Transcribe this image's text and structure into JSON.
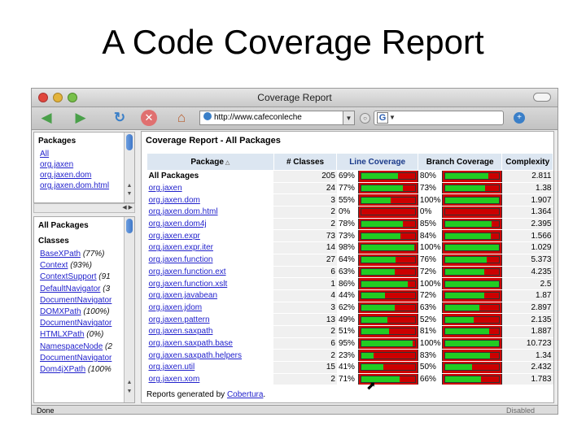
{
  "slide": {
    "title": "A Code Coverage Report"
  },
  "window": {
    "title": "Coverage Report"
  },
  "toolbar": {
    "url": "http://www.cafeconleche",
    "search_engine": "G"
  },
  "packages_frame": {
    "heading": "Packages",
    "items": [
      "All",
      "org.jaxen",
      "org.jaxen.dom",
      "org.jaxen.dom.html"
    ]
  },
  "classes_frame": {
    "heading": "All Packages",
    "subheading": "Classes",
    "items": [
      {
        "name": "BaseXPath",
        "pct": "(77%)"
      },
      {
        "name": "Context",
        "pct": "(93%)"
      },
      {
        "name": "ContextSupport",
        "pct": "(91"
      },
      {
        "name": "DefaultNavigator",
        "pct": "(3"
      },
      {
        "name": "DocumentNavigator",
        "pct": ""
      },
      {
        "name": "DOMXPath",
        "pct": "(100%)"
      },
      {
        "name": "DocumentNavigator",
        "pct": ""
      },
      {
        "name": "HTMLXPath",
        "pct": "(0%)"
      },
      {
        "name": "NamespaceNode",
        "pct": "(2"
      },
      {
        "name": "DocumentNavigator",
        "pct": ""
      },
      {
        "name": "Dom4jXPath",
        "pct": "(100%"
      }
    ]
  },
  "report": {
    "title": "Coverage Report - All Packages",
    "headers": [
      "Package",
      "# Classes",
      "Line Coverage",
      "Branch Coverage",
      "Complexity"
    ],
    "rows": [
      {
        "pkg": "All Packages",
        "classes": "205",
        "line": "69%",
        "line_v": 0.69,
        "branch": "80%",
        "branch_v": 0.8,
        "cx": "2.811"
      },
      {
        "pkg": "org.jaxen",
        "classes": "24",
        "line": "77%",
        "line_v": 0.77,
        "branch": "73%",
        "branch_v": 0.73,
        "cx": "1.38"
      },
      {
        "pkg": "org.jaxen.dom",
        "classes": "3",
        "line": "55%",
        "line_v": 0.55,
        "branch": "100%",
        "branch_v": 1.0,
        "cx": "1.907"
      },
      {
        "pkg": "org.jaxen.dom.html",
        "classes": "2",
        "line": "0%",
        "line_v": 0.0,
        "branch": "0%",
        "branch_v": 0.0,
        "cx": "1.364"
      },
      {
        "pkg": "org.jaxen.dom4j",
        "classes": "2",
        "line": "78%",
        "line_v": 0.78,
        "branch": "85%",
        "branch_v": 0.85,
        "cx": "2.395"
      },
      {
        "pkg": "org.jaxen.expr",
        "classes": "73",
        "line": "73%",
        "line_v": 0.73,
        "branch": "84%",
        "branch_v": 0.84,
        "cx": "1.566"
      },
      {
        "pkg": "org.jaxen.expr.iter",
        "classes": "14",
        "line": "98%",
        "line_v": 0.98,
        "branch": "100%",
        "branch_v": 1.0,
        "cx": "1.029"
      },
      {
        "pkg": "org.jaxen.function",
        "classes": "27",
        "line": "64%",
        "line_v": 0.64,
        "branch": "76%",
        "branch_v": 0.76,
        "cx": "5.373"
      },
      {
        "pkg": "org.jaxen.function.ext",
        "classes": "6",
        "line": "63%",
        "line_v": 0.63,
        "branch": "72%",
        "branch_v": 0.72,
        "cx": "4.235"
      },
      {
        "pkg": "org.jaxen.function.xslt",
        "classes": "1",
        "line": "86%",
        "line_v": 0.86,
        "branch": "100%",
        "branch_v": 1.0,
        "cx": "2.5"
      },
      {
        "pkg": "org.jaxen.javabean",
        "classes": "4",
        "line": "44%",
        "line_v": 0.44,
        "branch": "72%",
        "branch_v": 0.72,
        "cx": "1.87"
      },
      {
        "pkg": "org.jaxen.jdom",
        "classes": "3",
        "line": "62%",
        "line_v": 0.62,
        "branch": "63%",
        "branch_v": 0.63,
        "cx": "2.897"
      },
      {
        "pkg": "org.jaxen.pattern",
        "classes": "13",
        "line": "49%",
        "line_v": 0.49,
        "branch": "52%",
        "branch_v": 0.52,
        "cx": "2.135"
      },
      {
        "pkg": "org.jaxen.saxpath",
        "classes": "2",
        "line": "51%",
        "line_v": 0.51,
        "branch": "81%",
        "branch_v": 0.81,
        "cx": "1.887"
      },
      {
        "pkg": "org.jaxen.saxpath.base",
        "classes": "6",
        "line": "95%",
        "line_v": 0.95,
        "branch": "100%",
        "branch_v": 1.0,
        "cx": "10.723"
      },
      {
        "pkg": "org.jaxen.saxpath.helpers",
        "classes": "2",
        "line": "23%",
        "line_v": 0.23,
        "branch": "83%",
        "branch_v": 0.83,
        "cx": "1.34"
      },
      {
        "pkg": "org.jaxen.util",
        "classes": "15",
        "line": "41%",
        "line_v": 0.41,
        "branch": "50%",
        "branch_v": 0.5,
        "cx": "2.432"
      },
      {
        "pkg": "org.jaxen.xom",
        "classes": "2",
        "line": "71%",
        "line_v": 0.71,
        "branch": "66%",
        "branch_v": 0.66,
        "cx": "1.783"
      }
    ],
    "footer_prefix": "Reports generated by ",
    "footer_link": "Cobertura",
    "footer_suffix": "."
  },
  "status": {
    "left": "Done",
    "right": "Disabled"
  },
  "colors": {
    "covered": "#22cc22",
    "uncovered": "#cc0000",
    "header_bg": "#dce6f1",
    "link": "#2222cc"
  }
}
